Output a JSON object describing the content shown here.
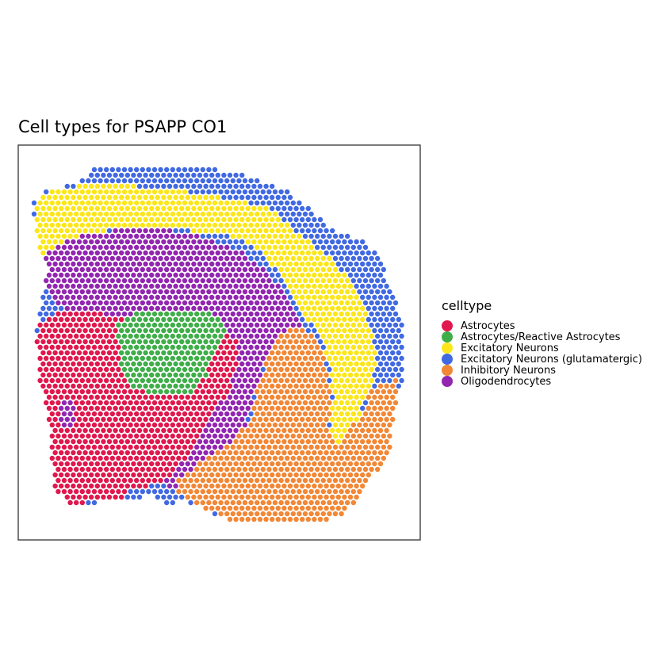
{
  "chart_data": {
    "type": "scatter",
    "title": "Cell types for PSAPP CO1",
    "xlabel": "",
    "ylabel": "",
    "grid": false,
    "legend": {
      "title": "celltype",
      "position": "right"
    },
    "series": [
      {
        "name": "Astrocytes",
        "color": "#e0184d"
      },
      {
        "name": "Astrocytes/Reactive Astrocytes",
        "color": "#3fae49"
      },
      {
        "name": "Excitatory Neurons",
        "color": "#fde619"
      },
      {
        "name": "Excitatory Neurons (glutamatergic)",
        "color": "#4169e1"
      },
      {
        "name": "Inhibitory Neurons",
        "color": "#f28735"
      },
      {
        "name": "Oligodendrocytes",
        "color": "#9226b0"
      }
    ],
    "spots": {
      "description_note": "",
      "point_color_by": "celltype"
    }
  }
}
